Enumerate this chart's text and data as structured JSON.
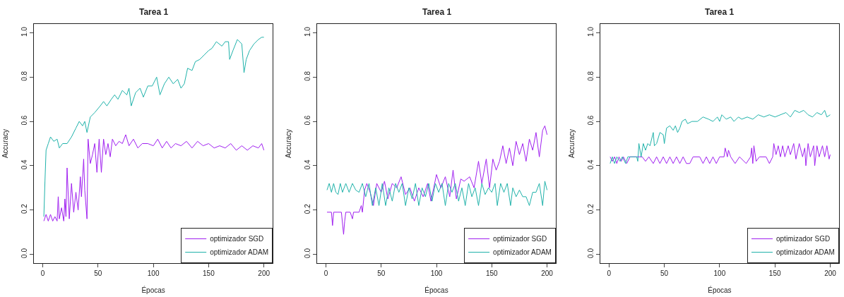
{
  "chart_data": [
    {
      "type": "line",
      "title": "Tarea 1",
      "xlabel": "Épocas",
      "ylabel": "Accuracy",
      "legend": "bottom right",
      "xlim": [
        -8,
        208
      ],
      "ylim": [
        -0.04,
        1.04
      ],
      "xticks": [
        0,
        50,
        100,
        150,
        200
      ],
      "yticks": [
        {
          "value": 0,
          "label": "0.0"
        },
        {
          "value": 0.2,
          "label": "0.2"
        },
        {
          "value": 0.4,
          "label": "0.4"
        },
        {
          "value": 0.6,
          "label": "0.6"
        },
        {
          "value": 0.8,
          "label": "0.8"
        },
        {
          "value": 1,
          "label": "1.0"
        }
      ],
      "series": [
        {
          "name": "optimizador SGD",
          "color": "#a020f0",
          "x": [
            1,
            3,
            5,
            7,
            9,
            11,
            13,
            14,
            15,
            17,
            19,
            20,
            21,
            22,
            24,
            26,
            28,
            30,
            32,
            34,
            35,
            37,
            38,
            40,
            41,
            43,
            45,
            47,
            49,
            51,
            53,
            55,
            57,
            59,
            61,
            63,
            66,
            69,
            72,
            75,
            78,
            82,
            86,
            90,
            95,
            100,
            104,
            108,
            112,
            116,
            120,
            125,
            130,
            135,
            140,
            145,
            150,
            155,
            160,
            165,
            170,
            175,
            180,
            185,
            190,
            195,
            198,
            200
          ],
          "values": [
            0.15,
            0.18,
            0.15,
            0.18,
            0.15,
            0.17,
            0.15,
            0.26,
            0.16,
            0.21,
            0.15,
            0.25,
            0.17,
            0.39,
            0.16,
            0.32,
            0.19,
            0.28,
            0.2,
            0.35,
            0.26,
            0.43,
            0.29,
            0.16,
            0.52,
            0.41,
            0.45,
            0.5,
            0.37,
            0.52,
            0.37,
            0.52,
            0.45,
            0.5,
            0.44,
            0.52,
            0.49,
            0.51,
            0.5,
            0.54,
            0.49,
            0.52,
            0.48,
            0.5,
            0.5,
            0.49,
            0.52,
            0.48,
            0.51,
            0.48,
            0.5,
            0.49,
            0.51,
            0.48,
            0.51,
            0.49,
            0.5,
            0.48,
            0.49,
            0.48,
            0.5,
            0.47,
            0.49,
            0.47,
            0.49,
            0.48,
            0.5,
            0.47
          ]
        },
        {
          "name": "optimizador ADAM",
          "color": "#20b2aa",
          "x": [
            1,
            2,
            3,
            5,
            7,
            10,
            13,
            15,
            18,
            22,
            26,
            30,
            33,
            36,
            38,
            40,
            43,
            47,
            52,
            55,
            58,
            62,
            65,
            68,
            72,
            76,
            78,
            80,
            84,
            88,
            91,
            95,
            99,
            103,
            106,
            110,
            114,
            118,
            122,
            125,
            128,
            131,
            135,
            138,
            142,
            146,
            150,
            153,
            157,
            162,
            165,
            168,
            169,
            172,
            176,
            180,
            182,
            184,
            187,
            191,
            195,
            198,
            200
          ],
          "values": [
            0.17,
            0.33,
            0.47,
            0.5,
            0.53,
            0.51,
            0.52,
            0.48,
            0.5,
            0.5,
            0.53,
            0.57,
            0.6,
            0.58,
            0.6,
            0.55,
            0.62,
            0.64,
            0.67,
            0.69,
            0.67,
            0.7,
            0.72,
            0.7,
            0.74,
            0.72,
            0.75,
            0.67,
            0.73,
            0.75,
            0.71,
            0.76,
            0.76,
            0.8,
            0.72,
            0.77,
            0.8,
            0.77,
            0.79,
            0.75,
            0.77,
            0.84,
            0.83,
            0.87,
            0.88,
            0.9,
            0.92,
            0.93,
            0.96,
            0.94,
            0.96,
            0.96,
            0.88,
            0.92,
            0.97,
            0.95,
            0.82,
            0.88,
            0.92,
            0.95,
            0.97,
            0.98,
            0.98
          ]
        }
      ]
    },
    {
      "type": "line",
      "title": "Tarea 1",
      "xlabel": "Épocas",
      "ylabel": "Accuracy",
      "legend": "bottom right",
      "xlim": [
        -8,
        208
      ],
      "ylim": [
        -0.04,
        1.04
      ],
      "xticks": [
        0,
        50,
        100,
        150,
        200
      ],
      "yticks": [
        {
          "value": 0,
          "label": "0.0"
        },
        {
          "value": 0.2,
          "label": "0.2"
        },
        {
          "value": 0.4,
          "label": "0.4"
        },
        {
          "value": 0.6,
          "label": "0.6"
        },
        {
          "value": 0.8,
          "label": "0.8"
        },
        {
          "value": 1,
          "label": "1.0"
        }
      ],
      "series": [
        {
          "name": "optimizador SGD",
          "color": "#a020f0",
          "x": [
            1,
            5,
            6,
            7,
            10,
            14,
            16,
            17,
            18,
            22,
            24,
            25,
            30,
            32,
            33,
            35,
            37,
            40,
            43,
            46,
            50,
            53,
            56,
            60,
            64,
            68,
            72,
            76,
            80,
            84,
            88,
            92,
            95,
            100,
            104,
            108,
            112,
            115,
            118,
            122,
            125,
            130,
            134,
            138,
            141,
            145,
            148,
            151,
            154,
            157,
            160,
            163,
            166,
            169,
            172,
            175,
            178,
            181,
            184,
            187,
            190,
            193,
            196,
            198,
            200
          ],
          "values": [
            0.19,
            0.19,
            0.13,
            0.19,
            0.19,
            0.19,
            0.09,
            0.15,
            0.19,
            0.19,
            0.16,
            0.19,
            0.19,
            0.22,
            0.19,
            0.29,
            0.32,
            0.28,
            0.22,
            0.32,
            0.28,
            0.33,
            0.25,
            0.32,
            0.3,
            0.35,
            0.27,
            0.3,
            0.24,
            0.3,
            0.26,
            0.32,
            0.24,
            0.36,
            0.3,
            0.35,
            0.26,
            0.38,
            0.25,
            0.34,
            0.33,
            0.35,
            0.3,
            0.42,
            0.32,
            0.43,
            0.3,
            0.43,
            0.38,
            0.42,
            0.49,
            0.41,
            0.48,
            0.4,
            0.51,
            0.45,
            0.5,
            0.42,
            0.52,
            0.47,
            0.55,
            0.44,
            0.56,
            0.58,
            0.54
          ]
        },
        {
          "name": "optimizador ADAM",
          "color": "#20b2aa",
          "x": [
            1,
            3,
            5,
            7,
            9,
            11,
            13,
            15,
            18,
            21,
            24,
            27,
            30,
            33,
            36,
            39,
            42,
            45,
            48,
            51,
            54,
            57,
            60,
            63,
            66,
            69,
            72,
            75,
            78,
            81,
            84,
            87,
            90,
            93,
            96,
            99,
            102,
            105,
            108,
            111,
            114,
            117,
            120,
            123,
            126,
            129,
            132,
            135,
            138,
            141,
            144,
            147,
            150,
            153,
            155,
            158,
            161,
            164,
            167,
            169,
            172,
            175,
            178,
            181,
            184,
            187,
            190,
            193,
            196,
            198,
            200
          ],
          "values": [
            0.29,
            0.32,
            0.28,
            0.32,
            0.28,
            0.27,
            0.32,
            0.28,
            0.32,
            0.28,
            0.32,
            0.29,
            0.28,
            0.32,
            0.26,
            0.32,
            0.22,
            0.3,
            0.22,
            0.32,
            0.22,
            0.3,
            0.24,
            0.32,
            0.28,
            0.32,
            0.22,
            0.3,
            0.25,
            0.32,
            0.22,
            0.3,
            0.26,
            0.32,
            0.24,
            0.32,
            0.28,
            0.32,
            0.22,
            0.32,
            0.28,
            0.32,
            0.24,
            0.3,
            0.22,
            0.32,
            0.26,
            0.3,
            0.22,
            0.32,
            0.27,
            0.3,
            0.28,
            0.32,
            0.22,
            0.32,
            0.28,
            0.32,
            0.22,
            0.3,
            0.26,
            0.29,
            0.26,
            0.26,
            0.22,
            0.28,
            0.28,
            0.32,
            0.22,
            0.33,
            0.29
          ]
        }
      ]
    },
    {
      "type": "line",
      "title": "Tarea 1",
      "xlabel": "Épocas",
      "ylabel": "Accuracy",
      "legend": "bottom right",
      "xlim": [
        -8,
        208
      ],
      "ylim": [
        -0.04,
        1.04
      ],
      "xticks": [
        0,
        50,
        100,
        150,
        200
      ],
      "yticks": [
        {
          "value": 0,
          "label": "0.0"
        },
        {
          "value": 0.2,
          "label": "0.2"
        },
        {
          "value": 0.4,
          "label": "0.4"
        },
        {
          "value": 0.6,
          "label": "0.6"
        },
        {
          "value": 0.8,
          "label": "0.8"
        },
        {
          "value": 1,
          "label": "1.0"
        }
      ],
      "series": [
        {
          "name": "optimizador SGD",
          "color": "#a020f0",
          "x": [
            1,
            3,
            5,
            7,
            9,
            11,
            13,
            16,
            19,
            25,
            30,
            33,
            36,
            40,
            43,
            46,
            49,
            52,
            55,
            58,
            61,
            64,
            67,
            70,
            73,
            76,
            82,
            85,
            88,
            91,
            94,
            97,
            100,
            104,
            105,
            107,
            108,
            110,
            114,
            118,
            124,
            128,
            129,
            130,
            131,
            133,
            136,
            142,
            145,
            148,
            149,
            151,
            153,
            155,
            157,
            159,
            162,
            164,
            167,
            169,
            172,
            175,
            177,
            178,
            180,
            182,
            185,
            186,
            188,
            190,
            193,
            195,
            197,
            199,
            200
          ],
          "values": [
            0.44,
            0.42,
            0.44,
            0.41,
            0.44,
            0.42,
            0.44,
            0.41,
            0.44,
            0.44,
            0.44,
            0.42,
            0.44,
            0.41,
            0.44,
            0.41,
            0.44,
            0.41,
            0.44,
            0.41,
            0.44,
            0.41,
            0.44,
            0.41,
            0.41,
            0.44,
            0.44,
            0.41,
            0.44,
            0.41,
            0.44,
            0.41,
            0.44,
            0.44,
            0.48,
            0.44,
            0.47,
            0.44,
            0.41,
            0.44,
            0.41,
            0.44,
            0.48,
            0.41,
            0.49,
            0.42,
            0.44,
            0.44,
            0.41,
            0.44,
            0.5,
            0.45,
            0.49,
            0.44,
            0.49,
            0.44,
            0.49,
            0.45,
            0.5,
            0.43,
            0.5,
            0.44,
            0.48,
            0.4,
            0.5,
            0.44,
            0.49,
            0.4,
            0.49,
            0.44,
            0.49,
            0.44,
            0.49,
            0.43,
            0.45
          ]
        },
        {
          "name": "optimizador ADAM",
          "color": "#20b2aa",
          "x": [
            1,
            3,
            5,
            7,
            10,
            12,
            15,
            17,
            20,
            25,
            26,
            27,
            29,
            31,
            33,
            35,
            37,
            40,
            41,
            43,
            46,
            49,
            50,
            52,
            55,
            58,
            60,
            62,
            64,
            66,
            69,
            71,
            75,
            80,
            85,
            90,
            94,
            98,
            100,
            102,
            106,
            110,
            113,
            117,
            120,
            125,
            130,
            135,
            140,
            145,
            150,
            155,
            160,
            164,
            168,
            172,
            176,
            180,
            184,
            188,
            192,
            195,
            197,
            200
          ],
          "values": [
            0.41,
            0.44,
            0.41,
            0.44,
            0.42,
            0.44,
            0.41,
            0.44,
            0.44,
            0.44,
            0.42,
            0.5,
            0.44,
            0.5,
            0.47,
            0.5,
            0.49,
            0.55,
            0.49,
            0.5,
            0.55,
            0.54,
            0.5,
            0.57,
            0.58,
            0.56,
            0.58,
            0.55,
            0.57,
            0.6,
            0.61,
            0.59,
            0.6,
            0.6,
            0.62,
            0.61,
            0.6,
            0.62,
            0.6,
            0.63,
            0.61,
            0.62,
            0.6,
            0.62,
            0.61,
            0.62,
            0.61,
            0.63,
            0.62,
            0.63,
            0.62,
            0.63,
            0.64,
            0.62,
            0.65,
            0.64,
            0.65,
            0.63,
            0.62,
            0.64,
            0.63,
            0.65,
            0.62,
            0.63
          ]
        }
      ]
    }
  ]
}
